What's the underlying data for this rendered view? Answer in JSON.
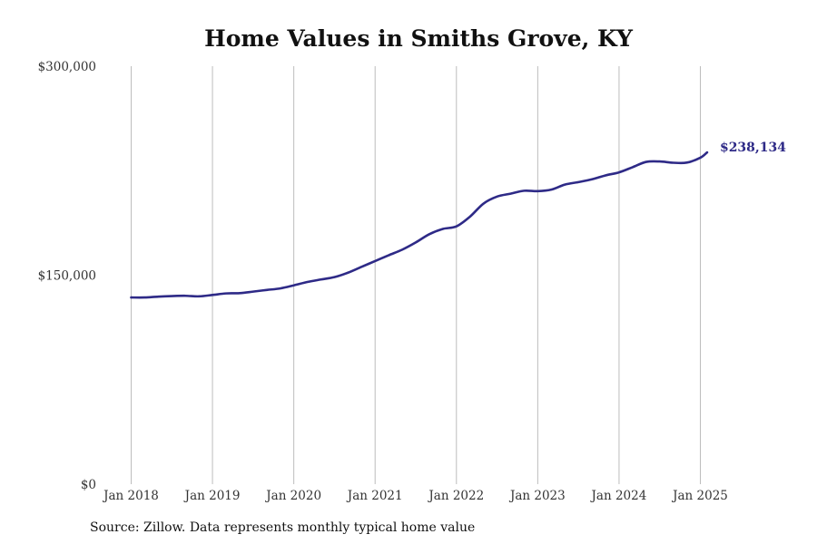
{
  "title": "Home Values in Smiths Grove, KY",
  "source_note": "Source: Zillow. Data represents monthly typical home value",
  "colors": {
    "line": "#2e2a87",
    "grid": "#bdbdbd",
    "text": "#333333"
  },
  "chart_data": {
    "type": "line",
    "title": "Home Values in Smiths Grove, KY",
    "xlabel": "",
    "ylabel": "",
    "ylim": [
      0,
      300000
    ],
    "xlim": [
      "2018-01",
      "2025-02"
    ],
    "y_ticks": [
      0,
      150000,
      300000
    ],
    "y_tick_labels": [
      "$0",
      "$150,000",
      "$300,000"
    ],
    "x_ticks": [
      "2018-01",
      "2019-01",
      "2020-01",
      "2021-01",
      "2022-01",
      "2023-01",
      "2024-01",
      "2025-01"
    ],
    "x_tick_labels": [
      "Jan 2018",
      "Jan 2019",
      "Jan 2020",
      "Jan 2021",
      "Jan 2022",
      "Jan 2023",
      "Jan 2024",
      "Jan 2025"
    ],
    "grid": "vertical",
    "end_label": "$238,134",
    "series": [
      {
        "x": [
          "2018-01",
          "2018-03",
          "2018-05",
          "2018-07",
          "2018-09",
          "2018-11",
          "2019-01",
          "2019-03",
          "2019-05",
          "2019-07",
          "2019-09",
          "2019-11",
          "2020-01",
          "2020-03",
          "2020-05",
          "2020-07",
          "2020-09",
          "2020-11",
          "2021-01",
          "2021-03",
          "2021-05",
          "2021-07",
          "2021-09",
          "2021-11",
          "2022-01",
          "2022-03",
          "2022-05",
          "2022-07",
          "2022-09",
          "2022-11",
          "2023-01",
          "2023-03",
          "2023-05",
          "2023-07",
          "2023-09",
          "2023-11",
          "2024-01",
          "2024-03",
          "2024-05",
          "2024-07",
          "2024-09",
          "2024-11",
          "2025-01",
          "2025-02"
        ],
        "values": [
          134000,
          134000,
          134600,
          135000,
          135200,
          134800,
          135800,
          136900,
          137100,
          138200,
          139400,
          140500,
          142700,
          145100,
          146900,
          148600,
          151800,
          156000,
          160100,
          164300,
          168300,
          173500,
          179400,
          183200,
          185000,
          192000,
          201400,
          206400,
          208500,
          210600,
          210300,
          211400,
          215000,
          216800,
          218800,
          221600,
          223800,
          227500,
          231300,
          231600,
          230700,
          230800,
          234300,
          238134
        ]
      }
    ]
  }
}
